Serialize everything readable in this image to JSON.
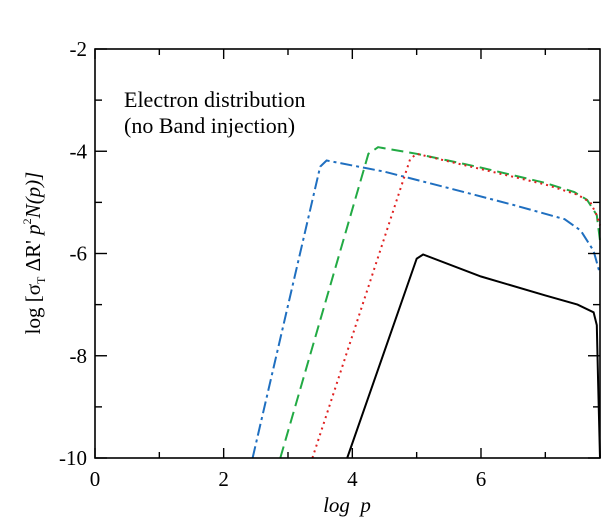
{
  "chart_data": {
    "type": "line",
    "title": "",
    "annotation_lines": [
      "Electron distribution",
      "(no Band injection)"
    ],
    "xlabel": "log  p",
    "ylabel": "log [σ_T ΔR' p^2 N(p)]",
    "ylabel_parts": {
      "prefix": "log [",
      "sigma": "σ",
      "sub_T": "T",
      "delta_r": " ΔR'",
      "p": " p",
      "sup_2": "2",
      "np": "N(p)]"
    },
    "xlim": [
      0,
      7.85
    ],
    "ylim": [
      -10,
      -2
    ],
    "x_ticks": [
      0,
      2,
      4,
      6
    ],
    "x_tick_labels": [
      "0",
      "2",
      "4",
      "6"
    ],
    "y_ticks": [
      -10,
      -8,
      -6,
      -4,
      -2
    ],
    "y_tick_labels": [
      "-10",
      "-8",
      "-6",
      "-4",
      "-2"
    ],
    "grid": false,
    "series": [
      {
        "color": "#1f6fc0",
        "dash": "dashdot",
        "x": [
          2.45,
          3.5,
          3.6,
          4.5,
          5.5,
          6.5,
          7.3,
          7.55,
          7.75,
          7.85
        ],
        "y": [
          -10,
          -4.3,
          -4.18,
          -4.4,
          -4.72,
          -5.05,
          -5.33,
          -5.55,
          -5.95,
          -6.4
        ]
      },
      {
        "color": "#22aa44",
        "dash": "dashed",
        "x": [
          2.88,
          4.25,
          4.4,
          5.0,
          6.0,
          7.0,
          7.45,
          7.65,
          7.8,
          7.85
        ],
        "y": [
          -10,
          -4.05,
          -3.92,
          -4.05,
          -4.32,
          -4.62,
          -4.8,
          -4.95,
          -5.25,
          -5.75
        ]
      },
      {
        "color": "#e02020",
        "dash": "dotted",
        "x": [
          3.38,
          4.9,
          5.0,
          6.0,
          7.0,
          7.5,
          7.7,
          7.8,
          7.85
        ],
        "y": [
          -10,
          -4.15,
          -4.05,
          -4.35,
          -4.65,
          -4.85,
          -5.0,
          -5.25,
          -5.45
        ]
      },
      {
        "color": "#000000",
        "dash": "solid",
        "x": [
          3.92,
          5.0,
          5.1,
          6.0,
          7.0,
          7.5,
          7.75,
          7.8,
          7.82,
          7.85
        ],
        "y": [
          -10,
          -6.1,
          -6.02,
          -6.45,
          -6.82,
          -7.0,
          -7.15,
          -7.4,
          -8.5,
          -10
        ]
      }
    ]
  }
}
